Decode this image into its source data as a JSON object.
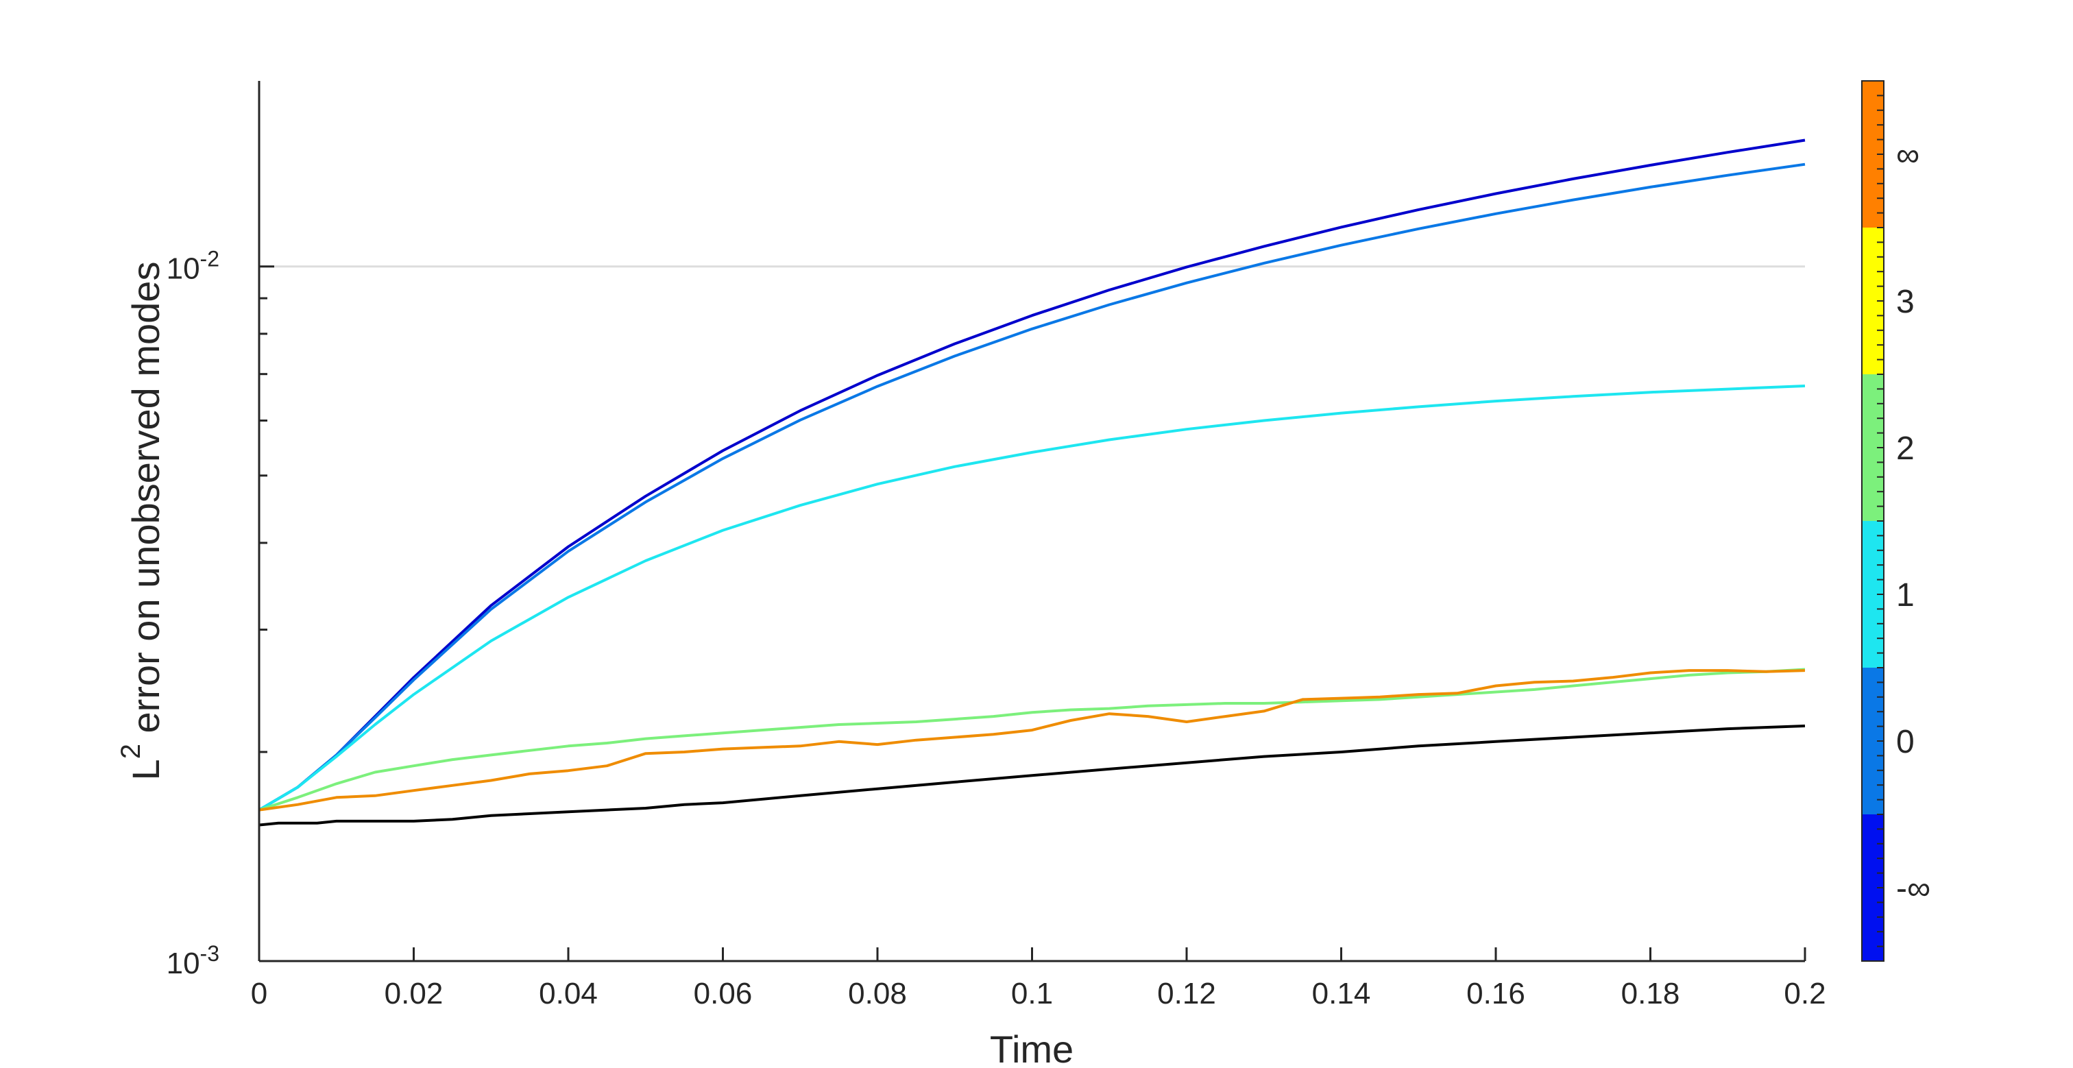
{
  "chart_data": {
    "type": "line",
    "xlabel": "Time",
    "ylabel_base": "L",
    "ylabel_sup": "2",
    "ylabel_rest": " error on unobserved modes",
    "xlim": [
      0,
      0.2
    ],
    "ylim": [
      0.001,
      0.0185
    ],
    "yscale": "log",
    "grid": "y-major",
    "x_ticks": [
      0,
      0.02,
      0.04,
      0.06,
      0.08,
      0.1,
      0.12,
      0.14,
      0.16,
      0.18,
      0.2
    ],
    "x_tick_labels": [
      "0",
      "0.02",
      "0.04",
      "0.06",
      "0.08",
      "0.1",
      "0.12",
      "0.14",
      "0.16",
      "0.18",
      "0.2"
    ],
    "y_major_ticks": [
      {
        "value": 0.001,
        "base": "10",
        "exp": "-3"
      },
      {
        "value": 0.01,
        "base": "10",
        "exp": "-2"
      }
    ],
    "y_minor_ticks": [
      0.002,
      0.003,
      0.004,
      0.005,
      0.006,
      0.007,
      0.008,
      0.009
    ],
    "series": [
      {
        "color": "#0000cc",
        "x": [
          0,
          0.005,
          0.01,
          0.015,
          0.02,
          0.03,
          0.04,
          0.05,
          0.06,
          0.07,
          0.08,
          0.09,
          0.1,
          0.11,
          0.12,
          0.13,
          0.14,
          0.15,
          0.16,
          0.17,
          0.18,
          0.19,
          0.2
        ],
        "y": [
          0.00165,
          0.00178,
          0.00198,
          0.00225,
          0.00256,
          0.00325,
          0.00395,
          0.00467,
          0.00543,
          0.0062,
          0.00697,
          0.00774,
          0.0085,
          0.00925,
          0.00998,
          0.01069,
          0.01139,
          0.01207,
          0.01273,
          0.01337,
          0.01399,
          0.0146,
          0.0152
        ]
      },
      {
        "color": "#0a78e6",
        "x": [
          0,
          0.005,
          0.01,
          0.015,
          0.02,
          0.03,
          0.04,
          0.05,
          0.06,
          0.07,
          0.08,
          0.09,
          0.1,
          0.11,
          0.12,
          0.13,
          0.14,
          0.15,
          0.16,
          0.17,
          0.18,
          0.19,
          0.2
        ],
        "y": [
          0.00165,
          0.00178,
          0.00198,
          0.00224,
          0.00254,
          0.00321,
          0.00389,
          0.00458,
          0.00529,
          0.00601,
          0.00672,
          0.00743,
          0.00813,
          0.00881,
          0.00947,
          0.01011,
          0.01073,
          0.01133,
          0.01191,
          0.01247,
          0.01301,
          0.01353,
          0.01403
        ]
      },
      {
        "color": "#1ee6f0",
        "x": [
          0,
          0.005,
          0.01,
          0.015,
          0.02,
          0.03,
          0.04,
          0.05,
          0.06,
          0.07,
          0.08,
          0.09,
          0.1,
          0.11,
          0.12,
          0.13,
          0.14,
          0.15,
          0.16,
          0.17,
          0.18,
          0.19,
          0.2
        ],
        "y": [
          0.00165,
          0.00178,
          0.00197,
          0.00219,
          0.00242,
          0.00289,
          0.00334,
          0.00377,
          0.00417,
          0.00453,
          0.00486,
          0.00515,
          0.0054,
          0.00563,
          0.00583,
          0.006,
          0.00615,
          0.00628,
          0.0064,
          0.0065,
          0.00659,
          0.00666,
          0.00673
        ]
      },
      {
        "color": "#7cf07c",
        "x": [
          0,
          0.005,
          0.01,
          0.015,
          0.02,
          0.025,
          0.03,
          0.035,
          0.04,
          0.045,
          0.05,
          0.055,
          0.06,
          0.065,
          0.07,
          0.075,
          0.08,
          0.085,
          0.09,
          0.095,
          0.1,
          0.105,
          0.11,
          0.115,
          0.12,
          0.125,
          0.13,
          0.135,
          0.14,
          0.145,
          0.15,
          0.155,
          0.16,
          0.165,
          0.17,
          0.175,
          0.18,
          0.185,
          0.19,
          0.195,
          0.2
        ],
        "y": [
          0.00165,
          0.00172,
          0.0018,
          0.00187,
          0.00191,
          0.00195,
          0.00198,
          0.00201,
          0.00204,
          0.00206,
          0.00209,
          0.00211,
          0.00213,
          0.00215,
          0.00217,
          0.00219,
          0.0022,
          0.00221,
          0.00223,
          0.00225,
          0.00228,
          0.0023,
          0.00231,
          0.00233,
          0.00234,
          0.00235,
          0.00235,
          0.00236,
          0.00237,
          0.00238,
          0.0024,
          0.00242,
          0.00244,
          0.00246,
          0.00249,
          0.00252,
          0.00255,
          0.00258,
          0.0026,
          0.00261,
          0.00263
        ]
      },
      {
        "color": "#ef8c00",
        "x": [
          0,
          0.005,
          0.01,
          0.015,
          0.02,
          0.025,
          0.03,
          0.035,
          0.04,
          0.045,
          0.05,
          0.055,
          0.06,
          0.065,
          0.07,
          0.075,
          0.08,
          0.085,
          0.09,
          0.095,
          0.1,
          0.105,
          0.11,
          0.115,
          0.12,
          0.125,
          0.13,
          0.135,
          0.14,
          0.145,
          0.15,
          0.155,
          0.16,
          0.165,
          0.17,
          0.175,
          0.18,
          0.185,
          0.19,
          0.195,
          0.2
        ],
        "y": [
          0.00165,
          0.00168,
          0.00172,
          0.00173,
          0.00176,
          0.00179,
          0.00182,
          0.00186,
          0.00188,
          0.00191,
          0.00199,
          0.002,
          0.00202,
          0.00203,
          0.00204,
          0.00207,
          0.00205,
          0.00208,
          0.0021,
          0.00212,
          0.00215,
          0.00222,
          0.00227,
          0.00225,
          0.00221,
          0.00225,
          0.00229,
          0.00238,
          0.00239,
          0.0024,
          0.00242,
          0.00243,
          0.00249,
          0.00252,
          0.00253,
          0.00256,
          0.0026,
          0.00262,
          0.00262,
          0.00261,
          0.00262
        ]
      },
      {
        "color": "#000000",
        "x": [
          0,
          0.0025,
          0.005,
          0.0075,
          0.01,
          0.0125,
          0.015,
          0.0175,
          0.02,
          0.025,
          0.03,
          0.035,
          0.04,
          0.045,
          0.05,
          0.055,
          0.06,
          0.07,
          0.08,
          0.09,
          0.1,
          0.11,
          0.12,
          0.13,
          0.14,
          0.15,
          0.16,
          0.17,
          0.18,
          0.19,
          0.2
        ],
        "y": [
          0.00157,
          0.00158,
          0.00158,
          0.00158,
          0.00159,
          0.00159,
          0.00159,
          0.00159,
          0.00159,
          0.0016,
          0.00162,
          0.00163,
          0.00164,
          0.00165,
          0.00166,
          0.00168,
          0.00169,
          0.00173,
          0.00177,
          0.00181,
          0.00185,
          0.00189,
          0.00193,
          0.00197,
          0.002,
          0.00204,
          0.00207,
          0.0021,
          0.00213,
          0.00216,
          0.00218
        ]
      }
    ],
    "colorbar": {
      "segments": [
        {
          "label": "-∞",
          "color": "#0010f0"
        },
        {
          "label": "0",
          "color": "#0a78e6"
        },
        {
          "label": "1",
          "color": "#1ee6f0"
        },
        {
          "label": "2",
          "color": "#7cf07c"
        },
        {
          "label": "3",
          "color": "#ffff00"
        },
        {
          "label": "∞",
          "color": "#ff8000"
        }
      ],
      "minor_ticks_per_segment": 10
    }
  }
}
